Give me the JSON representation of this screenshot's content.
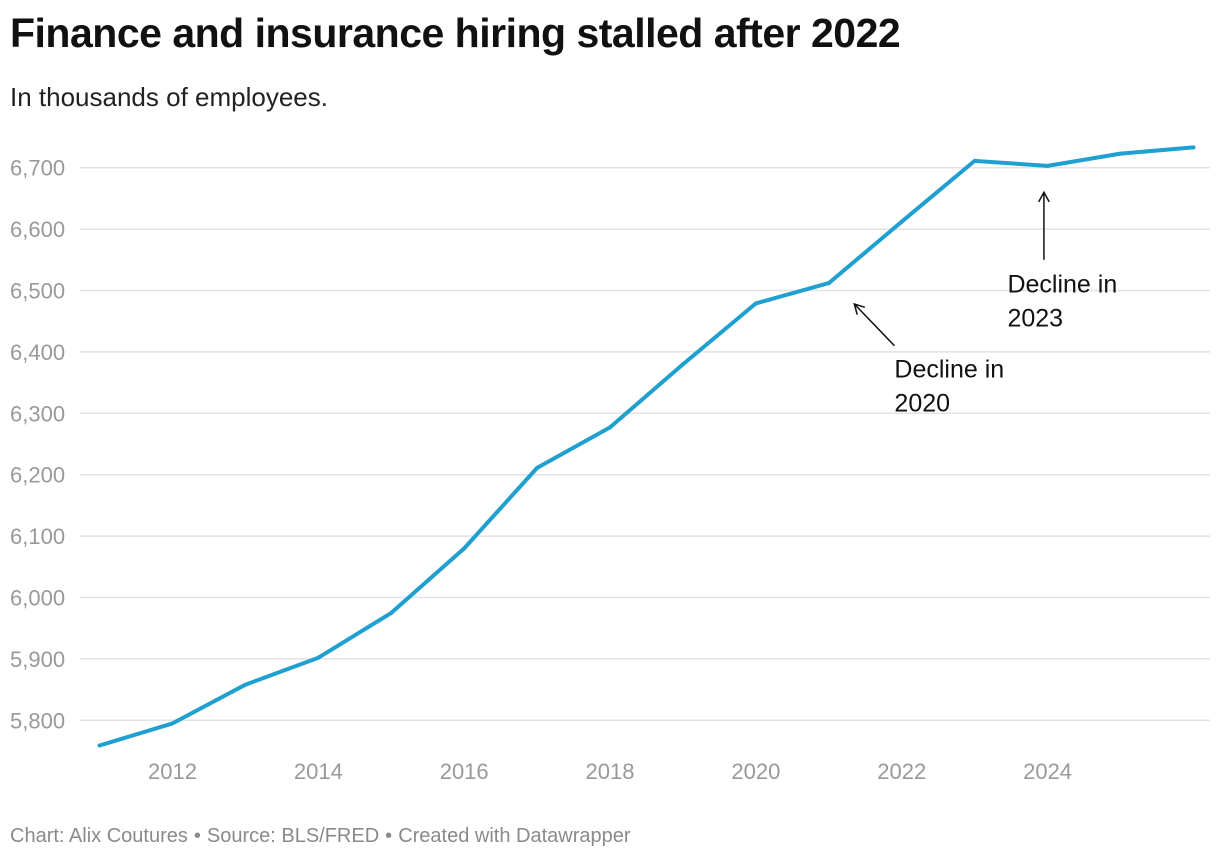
{
  "header": {
    "title": "Finance and insurance hiring stalled after 2022",
    "subtitle": "In thousands of employees."
  },
  "footer": {
    "chart_credit": "Chart: Alix Coutures",
    "separator": "•",
    "source": "Source: BLS/FRED",
    "created_with": "Created with Datawrapper"
  },
  "colors": {
    "line": "#1fa0d0",
    "grid": "#e3e3e3",
    "tick_text": "#999999",
    "annotation": "#111111"
  },
  "chart_data": {
    "type": "line",
    "title": "Finance and insurance hiring stalled after 2022",
    "subtitle": "In thousands of employees.",
    "xlabel": "",
    "ylabel": "",
    "xlim": [
      2010.8,
      2026.2
    ],
    "ylim": [
      5750,
      6750
    ],
    "x_ticks": [
      2012,
      2014,
      2016,
      2018,
      2020,
      2022,
      2024
    ],
    "x_tick_labels": [
      "2012",
      "2014",
      "2016",
      "2018",
      "2020",
      "2022",
      "2024"
    ],
    "y_ticks": [
      5800,
      5900,
      6000,
      6100,
      6200,
      6300,
      6400,
      6500,
      6600,
      6700
    ],
    "y_tick_labels": [
      "5,800",
      "5,900",
      "6,000",
      "6,100",
      "6,200",
      "6,300",
      "6,400",
      "6,500",
      "6,600",
      "6,700"
    ],
    "grid": true,
    "legend": "none",
    "series": [
      {
        "x": [
          2011,
          2012,
          2013,
          2014,
          2015,
          2016,
          2017,
          2018,
          2019,
          2020,
          2021,
          2022,
          2023,
          2024,
          2025,
          2026
        ],
        "values": [
          5759,
          5795,
          5858,
          5902,
          5975,
          6080,
          6211,
          6277,
          6380,
          6479,
          6512,
          6612,
          6711,
          6703,
          6723,
          6733
        ]
      }
    ],
    "annotations": [
      {
        "text_line1": "Decline in",
        "text_line2": "2020",
        "label_x": 2021.9,
        "label_y": 6358,
        "arrow_from_x": 2021.9,
        "arrow_from_y": 6410,
        "arrow_to_x": 2021.35,
        "arrow_to_y": 6478
      },
      {
        "text_line1": "Decline in",
        "text_line2": "2023",
        "label_x": 2023.45,
        "label_y": 6497,
        "arrow_from_x": 2023.95,
        "arrow_from_y": 6550,
        "arrow_to_x": 2023.95,
        "arrow_to_y": 6660
      }
    ]
  }
}
